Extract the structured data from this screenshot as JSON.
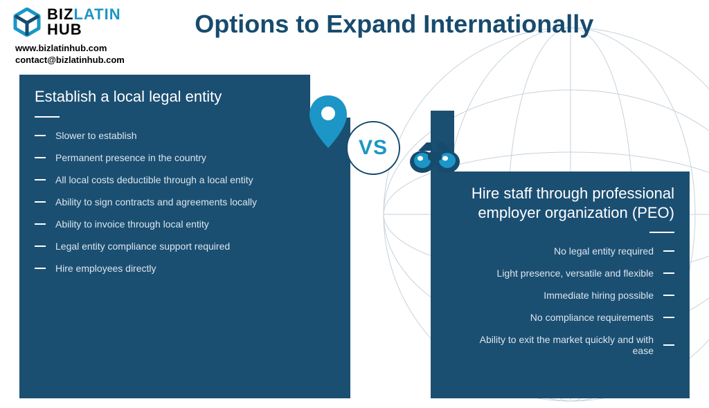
{
  "brand": {
    "line1": "BIZ",
    "line2": "LATIN",
    "line3": "HUB",
    "color_dark": "#000",
    "color_blue": "#1b96c6"
  },
  "title": "Options to Expand Internationally",
  "title_color": "#174b6e",
  "contact": {
    "website": "www.bizlatinhub.com",
    "email": "contact@bizlatinhub.com"
  },
  "panel_bg": "#1b4f72",
  "accent": "#1b96c6",
  "vs_label": "VS",
  "left": {
    "title": "Establish a local legal entity",
    "items": [
      "Slower to establish",
      "Permanent presence in the country",
      "All local costs deductible through a local entity",
      "Ability to sign contracts and agreements locally",
      "Ability to invoice through local entity",
      "Legal entity compliance support required",
      "Hire employees directly"
    ]
  },
  "right": {
    "title": "Hire staff through professional employer organization (PEO)",
    "items": [
      "No legal entity required",
      "Light presence, versatile and flexible",
      "Immediate hiring possible",
      "No compliance requirements",
      "Ability to exit the market quickly and with ease"
    ]
  }
}
